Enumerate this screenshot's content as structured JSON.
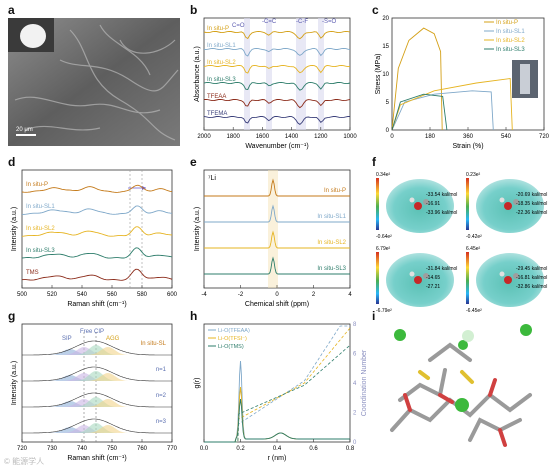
{
  "figure": {
    "panel_letters": [
      "a",
      "b",
      "c",
      "d",
      "e",
      "f",
      "g",
      "h",
      "i"
    ],
    "watermark": "© 能源学人"
  },
  "panel_a": {
    "scale_bar": "20 μm"
  },
  "panel_b": {
    "xlabel": "Wavenumber (cm⁻¹)",
    "ylabel": "Absorbance (a.u.)",
    "band_labels": [
      "C=O",
      "-C=C",
      "-C-F",
      "-S=O"
    ],
    "series": [
      {
        "name": "In situ-P",
        "color": "#d4a017"
      },
      {
        "name": "In situ-SL1",
        "color": "#7fa8c9"
      },
      {
        "name": "In situ-SL2",
        "color": "#e6b422"
      },
      {
        "name": "In situ-SL3",
        "color": "#2e7d6b"
      },
      {
        "name": "TFEAA",
        "color": "#8b2b1a"
      },
      {
        "name": "TFEMA",
        "color": "#3a3f7a"
      }
    ],
    "xticks": [
      "2000",
      "1800",
      "1600",
      "1400",
      "1200",
      "1000"
    ]
  },
  "panel_c": {
    "xlabel": "Strain (%)",
    "ylabel": "Stress (MPa)",
    "xticks": [
      "0",
      "180",
      "360",
      "540",
      "720"
    ],
    "yticks": [
      "0",
      "5",
      "10",
      "15",
      "20"
    ],
    "series": [
      {
        "name": "In situ-P",
        "color": "#d4a017",
        "x": [
          0,
          30,
          80,
          150,
          200,
          230,
          238
        ],
        "y": [
          0,
          11,
          16,
          18.2,
          17.2,
          14,
          0
        ]
      },
      {
        "name": "In situ-SL1",
        "color": "#7fa8c9",
        "x": [
          0,
          60,
          200,
          380,
          470,
          480
        ],
        "y": [
          0,
          5,
          6.4,
          7,
          6.8,
          0
        ]
      },
      {
        "name": "In situ-SL2",
        "color": "#e6b422",
        "x": [
          0,
          40,
          200,
          400,
          560,
          570
        ],
        "y": [
          0,
          4.5,
          7,
          8.4,
          9.2,
          0
        ]
      },
      {
        "name": "In situ-SL3",
        "color": "#2e7d6b",
        "x": [
          0,
          40,
          150,
          240,
          260
        ],
        "y": [
          0,
          5,
          6.4,
          6,
          0
        ]
      }
    ]
  },
  "panel_d": {
    "xlabel": "Raman shift (cm⁻¹)",
    "ylabel": "Intensity (a.u.)",
    "xticks": [
      "500",
      "520",
      "540",
      "560",
      "580",
      "600"
    ],
    "series": [
      {
        "name": "In situ-P",
        "color": "#c47a1a"
      },
      {
        "name": "In situ-SL1",
        "color": "#7fa8c9"
      },
      {
        "name": "In situ-SL2",
        "color": "#e6b422"
      },
      {
        "name": "In situ-SL3",
        "color": "#2e7d6b"
      },
      {
        "name": "TMS",
        "color": "#8b2b1a"
      }
    ]
  },
  "panel_e": {
    "nucleus": "⁷Li",
    "xlabel": "Chemical shift (ppm)",
    "ylabel": "Intensity (a.u.)",
    "xticks": [
      "-4",
      "-2",
      "0",
      "2",
      "4"
    ],
    "series": [
      {
        "name": "In situ-P",
        "color": "#c47a1a"
      },
      {
        "name": "In situ-SL1",
        "color": "#7fa8c9"
      },
      {
        "name": "In situ-SL2",
        "color": "#e6b422"
      },
      {
        "name": "In situ-SL3",
        "color": "#2e7d6b"
      }
    ]
  },
  "panel_f": {
    "maps": [
      {
        "top": "0.34e²",
        "bottom": "-0.64e²",
        "values": [
          "-33.54 kal/mol",
          "-16.91",
          "-33.96 kal/mol"
        ]
      },
      {
        "top": "0.23e²",
        "bottom": "-0.42e²",
        "values": [
          "-20.69 kal/mol",
          "-18.35 kal/mol",
          "-22.36 kal/mol"
        ]
      },
      {
        "top": "6.79e²",
        "bottom": "-6.79e²",
        "values": [
          "-31.84 kal/mol",
          "-14.65",
          "-27.21"
        ]
      },
      {
        "top": "6.45e²",
        "bottom": "-6.45e²",
        "values": [
          "-29.45 kal/mol",
          "-16.81 kal/mol",
          "-32.86 kal/mol"
        ]
      }
    ]
  },
  "panel_g": {
    "xlabel": "Raman shift (cm⁻¹)",
    "ylabel": "Intensity (a.u.)",
    "xticks": [
      "720",
      "730",
      "740",
      "750",
      "760",
      "770"
    ],
    "species": [
      "SIP",
      "Free",
      "CIP",
      "AGG"
    ],
    "rows": [
      "In situ-SL",
      "n=1",
      "n=2",
      "n=3"
    ]
  },
  "panel_h": {
    "xlabel": "r (nm)",
    "ylabel": "g(r)",
    "y2label": "Coordination Number",
    "xticks": [
      "0.0",
      "0.2",
      "0.4",
      "0.6",
      "0.8"
    ],
    "y2ticks": [
      "0",
      "2",
      "4",
      "6",
      "8"
    ],
    "legend": [
      {
        "name": "Li-O(TFEAA)",
        "color": "#7fa8c9"
      },
      {
        "name": "Li-O(TFSI⁻)",
        "color": "#e6b422"
      },
      {
        "name": "Li-O(TMS)",
        "color": "#2e7d6b"
      }
    ]
  }
}
